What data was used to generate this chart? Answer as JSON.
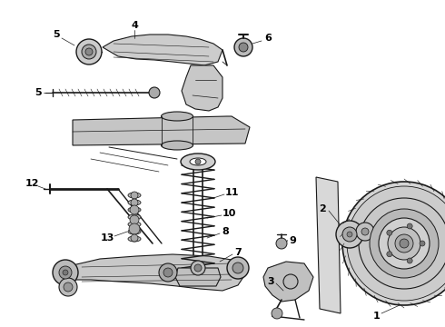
{
  "bg_color": "#ffffff",
  "line_color": "#1a1a1a",
  "label_color": "#000000",
  "figsize": [
    4.9,
    3.6
  ],
  "dpi": 100,
  "label_fontsize": 7.5
}
